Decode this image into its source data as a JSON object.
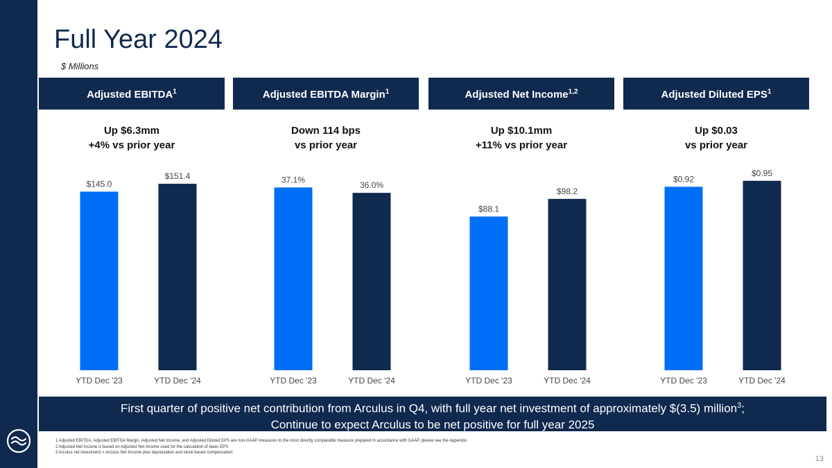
{
  "title": "Full Year 2024",
  "units": "$ Millions",
  "colors": {
    "bar_prior": "#006ff8",
    "bar_current": "#10294f",
    "navy": "#10294f"
  },
  "chart_data": [
    {
      "type": "bar",
      "title": "Adjusted EBITDA",
      "title_sup": "1",
      "delta_line1": "Up $6.3mm",
      "delta_line2": "+4% vs prior year",
      "categories": [
        "YTD Dec '23",
        "YTD Dec '24"
      ],
      "values": [
        145.0,
        151.4
      ],
      "labels": [
        "$145.0",
        "$151.4"
      ],
      "ylim": [
        0,
        170
      ]
    },
    {
      "type": "bar",
      "title": "Adjusted EBITDA Margin",
      "title_sup": "1",
      "delta_line1": "Down 114 bps",
      "delta_line2": "vs prior year",
      "categories": [
        "YTD Dec '23",
        "YTD Dec '24"
      ],
      "values": [
        37.1,
        36.0
      ],
      "labels": [
        "37.1%",
        "36.0%"
      ],
      "ylim": [
        0,
        42.5
      ]
    },
    {
      "type": "bar",
      "title": "Adjusted Net Income",
      "title_sup": "1,2",
      "delta_line1": "Up $10.1mm",
      "delta_line2": "+11% vs prior year",
      "categories": [
        "YTD Dec '23",
        "YTD Dec '24"
      ],
      "values": [
        88.1,
        98.2
      ],
      "labels": [
        "$88.1",
        "$98.2"
      ],
      "ylim": [
        0,
        120
      ]
    },
    {
      "type": "bar",
      "title": "Adjusted Diluted EPS",
      "title_sup": "1",
      "delta_line1": "Up $0.03",
      "delta_line2": "vs prior year",
      "categories": [
        "YTD Dec '23",
        "YTD Dec '24"
      ],
      "values": [
        0.92,
        0.95
      ],
      "labels": [
        "$0.92",
        "$0.95"
      ],
      "ylim": [
        0,
        1.05
      ]
    }
  ],
  "summary": {
    "line1_before": "First quarter of positive net contribution from Arculus in Q4, with full year net investment of approximately $(3.5) million",
    "line1_sup": "3",
    "line1_after": ";",
    "line2": "Continue to expect Arculus to be net positive for full year 2025"
  },
  "footnotes": [
    "1 Adjusted EBITDA, Adjusted EBITDA Margin, Adjusted Net income, and Adjusted Diluted EPS are non-GAAP measures to the most directly comparable measure prepared in accordance with GAAP, please see the Appendix.",
    "2 Adjusted Net Income is based on Adjusted Net Income used for the calculation of basic EPS",
    "3 Arculus net investment = Arculus Net Income plus depreciation and stock based compensation"
  ],
  "page_number": "13"
}
